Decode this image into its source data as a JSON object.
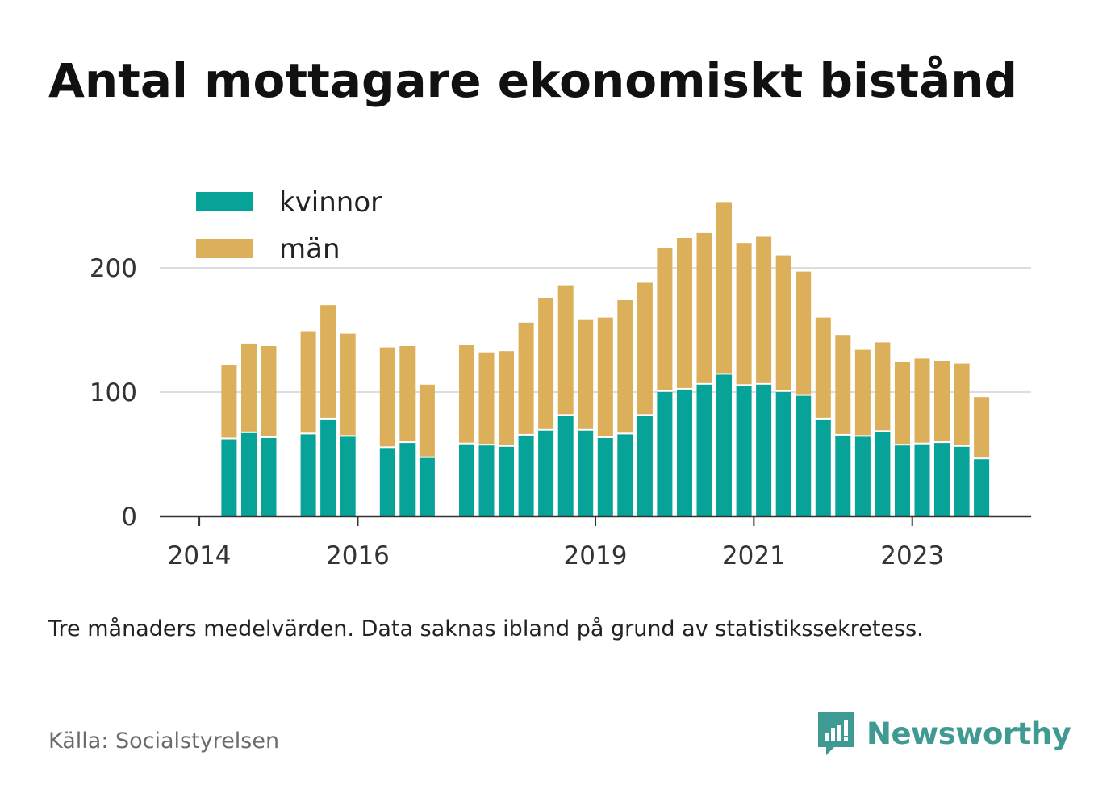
{
  "title": "Antal mottagare ekonomiskt bistånd",
  "note": "Tre månaders medelvärden. Data saknas ibland på grund av statistikssekretess.",
  "source": "Källa: Socialstyrelsen",
  "brand": "Newsworthy",
  "colors": {
    "kvinnor": "#08a398",
    "man": "#dcaf5a",
    "brand": "#3e9a92"
  },
  "chart_data": {
    "type": "bar",
    "stacked": true,
    "ylim": [
      0,
      260
    ],
    "yticks": [
      0,
      100,
      200
    ],
    "grid": true,
    "legend_position": "top-left",
    "xticks": [
      {
        "label": "2014",
        "x": 2014.0
      },
      {
        "label": "2016",
        "x": 2016.0
      },
      {
        "label": "2019",
        "x": 2019.0
      },
      {
        "label": "2021",
        "x": 2021.0
      },
      {
        "label": "2023",
        "x": 2023.0
      }
    ],
    "x": [
      2014.375,
      2014.625,
      2014.875,
      2015.375,
      2015.625,
      2015.875,
      2016.375,
      2016.625,
      2016.875,
      2017.375,
      2017.625,
      2017.875,
      2018.125,
      2018.375,
      2018.625,
      2018.875,
      2019.125,
      2019.375,
      2019.625,
      2019.875,
      2020.125,
      2020.375,
      2020.625,
      2020.875,
      2021.125,
      2021.375,
      2021.625,
      2021.875,
      2022.125,
      2022.375,
      2022.625,
      2022.875,
      2023.125,
      2023.375,
      2023.625,
      2023.875
    ],
    "series": [
      {
        "name": "kvinnor",
        "values": [
          62,
          67,
          63,
          66,
          78,
          64,
          55,
          59,
          47,
          58,
          57,
          56,
          65,
          69,
          81,
          69,
          63,
          66,
          81,
          100,
          102,
          106,
          114,
          105,
          106,
          100,
          97,
          78,
          65,
          64,
          68,
          57,
          58,
          59,
          56,
          46
        ]
      },
      {
        "name": "män",
        "values": [
          60,
          72,
          74,
          83,
          92,
          83,
          81,
          78,
          59,
          80,
          75,
          77,
          91,
          107,
          105,
          89,
          97,
          108,
          107,
          116,
          122,
          122,
          139,
          115,
          119,
          110,
          100,
          82,
          81,
          70,
          72,
          67,
          69,
          66,
          67,
          50
        ]
      }
    ]
  }
}
